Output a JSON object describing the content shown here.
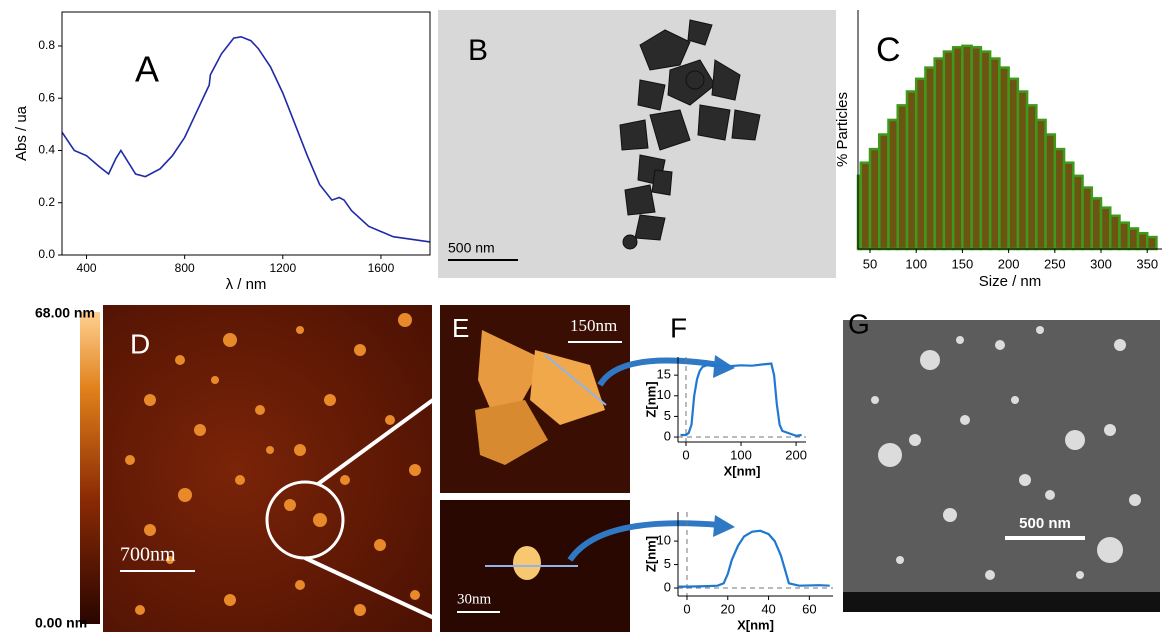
{
  "chart_data": [
    {
      "type": "line",
      "label": "A",
      "xlabel": "λ / nm",
      "ylabel": "Abs / ua",
      "color": "#1f2aa8",
      "xlim": [
        300,
        1800
      ],
      "xticks": [
        400,
        800,
        1200,
        1600
      ],
      "ylim": [
        0,
        0.93
      ],
      "yticks": [
        {
          "value": 0,
          "label": "0.0"
        },
        0.2,
        0.4,
        0.6,
        0.8
      ],
      "x": [
        300,
        350,
        400,
        450,
        490,
        520,
        540,
        560,
        600,
        640,
        700,
        750,
        800,
        850,
        890,
        900,
        905,
        950,
        1000,
        1030,
        1070,
        1100,
        1150,
        1200,
        1250,
        1300,
        1350,
        1400,
        1430,
        1450,
        1480,
        1550,
        1650,
        1800
      ],
      "values": [
        0.47,
        0.4,
        0.38,
        0.34,
        0.31,
        0.37,
        0.4,
        0.37,
        0.31,
        0.3,
        0.33,
        0.38,
        0.45,
        0.55,
        0.63,
        0.65,
        0.69,
        0.77,
        0.83,
        0.835,
        0.82,
        0.79,
        0.72,
        0.62,
        0.5,
        0.38,
        0.27,
        0.21,
        0.22,
        0.21,
        0.17,
        0.11,
        0.07,
        0.05
      ]
    },
    {
      "type": "bar",
      "label": "C",
      "xlabel": "Size / nm",
      "ylabel": "% Particles",
      "color": "#6e5412",
      "edge_color": "#3f9a1c",
      "xlim": [
        37,
        366
      ],
      "xticks": [
        50,
        100,
        150,
        200,
        250,
        300,
        350
      ],
      "ylim": [
        0,
        1
      ],
      "x": [
        35,
        45,
        55,
        65,
        75,
        85,
        95,
        105,
        115,
        125,
        135,
        145,
        155,
        165,
        175,
        185,
        195,
        205,
        215,
        225,
        235,
        245,
        255,
        265,
        275,
        285,
        295,
        305,
        315,
        325,
        335,
        345,
        355
      ],
      "values": [
        0.306,
        0.361,
        0.418,
        0.479,
        0.54,
        0.601,
        0.659,
        0.712,
        0.759,
        0.797,
        0.826,
        0.844,
        0.85,
        0.844,
        0.826,
        0.797,
        0.759,
        0.712,
        0.659,
        0.601,
        0.54,
        0.479,
        0.418,
        0.361,
        0.306,
        0.257,
        0.212,
        0.173,
        0.139,
        0.11,
        0.086,
        0.066,
        0.05
      ]
    },
    {
      "type": "line",
      "label": "F",
      "xlabel": "X[nm]",
      "ylabel": "Z[nm]",
      "color": "#1f78d1",
      "reference_lines": {
        "x": 0,
        "y": 0
      },
      "xlim": [
        -14.5,
        218
      ],
      "xticks": [
        0,
        100,
        200
      ],
      "ylim": [
        -1.2,
        19.4
      ],
      "yticks": [
        0,
        5,
        10,
        15
      ],
      "x": [
        -10,
        0,
        5,
        10,
        15,
        20,
        25,
        30,
        40,
        60,
        80,
        100,
        120,
        140,
        155,
        160,
        165,
        170,
        175,
        185,
        200,
        210
      ],
      "values": [
        0.5,
        0.5,
        1,
        3,
        10,
        14,
        16,
        17,
        17.5,
        17.3,
        17.2,
        17.4,
        17.3,
        17.6,
        17.8,
        15,
        8,
        3,
        1.5,
        1,
        0.3,
        0.5
      ]
    },
    {
      "type": "line",
      "xlabel": "X[nm]",
      "ylabel": "Z[nm]",
      "color": "#1f78d1",
      "reference_lines": {
        "x": 0,
        "y": 0
      },
      "xlim": [
        -4.4,
        71.6
      ],
      "xticks": [
        0,
        20,
        40,
        60
      ],
      "ylim": [
        -1.7,
        16.2
      ],
      "yticks": [
        0,
        5,
        10
      ],
      "x": [
        -4,
        0,
        10,
        15,
        18,
        20,
        22,
        25,
        28,
        32,
        36,
        40,
        43,
        46,
        48,
        50,
        55,
        65,
        70
      ],
      "values": [
        0.3,
        0.3,
        0.4,
        0.5,
        1,
        3,
        6,
        9,
        11,
        12,
        12.2,
        11.5,
        10,
        7,
        4,
        1,
        0.5,
        0.6,
        0.5
      ]
    }
  ],
  "panels": {
    "B": {
      "label": "B",
      "scale_bar": "500 nm"
    },
    "D": {
      "label": "D",
      "scale_bar": "700nm",
      "colorbar_max": "68.00 nm",
      "colorbar_min": "0.00 nm"
    },
    "E": {
      "label": "E",
      "scale_bar_top": "150nm",
      "scale_bar_bottom": "30nm"
    },
    "G": {
      "label": "G",
      "scale_bar": "500 nm"
    }
  }
}
